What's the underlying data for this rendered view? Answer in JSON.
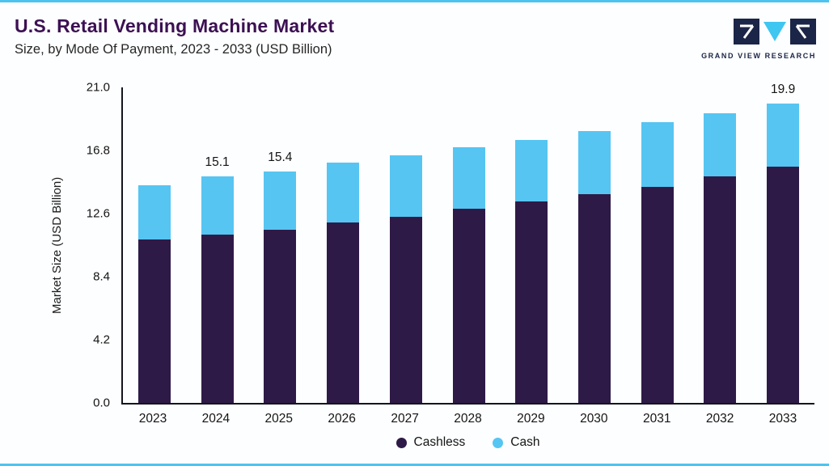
{
  "page": {
    "title": "U.S. Retail Vending Machine Market",
    "subtitle": "Size, by Mode Of Payment, 2023 - 2033 (USD Billion)",
    "logo_text": "GRAND VIEW RESEARCH"
  },
  "colors": {
    "accent_blue": "#4DC4EF",
    "bar_cashless": "#2E1A47",
    "bar_cash": "#56C5F2",
    "title_purple": "#3C1053",
    "logo_navy": "#1B2547",
    "axis": "#15151F",
    "text": "#141414"
  },
  "chart_data": {
    "type": "bar",
    "stacked": true,
    "title": "U.S. Retail Vending Machine Market",
    "subtitle": "Size, by Mode Of Payment, 2023 - 2033 (USD Billion)",
    "xlabel": "",
    "ylabel": "Market Size (USD Billion)",
    "ylim": [
      0,
      21
    ],
    "yticks": [
      "0.0",
      "4.2",
      "8.4",
      "12.6",
      "16.8",
      "21.0"
    ],
    "grid": false,
    "legend_position": "bottom",
    "categories": [
      "2023",
      "2024",
      "2025",
      "2026",
      "2027",
      "2028",
      "2029",
      "2030",
      "2031",
      "2032",
      "2033"
    ],
    "series": [
      {
        "name": "Cashless",
        "color": "#2E1A47",
        "values": [
          10.9,
          11.2,
          11.5,
          12.0,
          12.4,
          12.9,
          13.4,
          13.9,
          14.4,
          15.1,
          15.7
        ]
      },
      {
        "name": "Cash",
        "color": "#56C5F2",
        "values": [
          3.6,
          3.9,
          3.9,
          4.0,
          4.1,
          4.1,
          4.1,
          4.2,
          4.3,
          4.2,
          4.2
        ]
      }
    ],
    "totals": [
      14.5,
      15.1,
      15.4,
      16.0,
      16.5,
      17.0,
      17.5,
      18.1,
      18.7,
      19.3,
      19.9
    ],
    "visible_value_labels": {
      "2024": "15.1",
      "2025": "15.4",
      "2033": "19.9"
    }
  }
}
